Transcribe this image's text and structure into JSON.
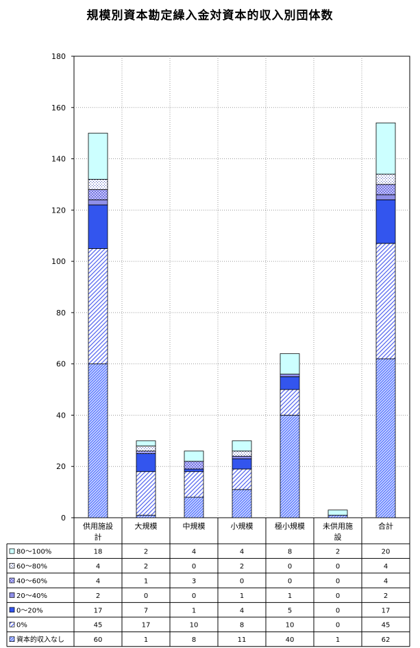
{
  "chart_data": {
    "type": "bar",
    "stacked": true,
    "title": "規模別資本勘定繰入金対資本的収入別団体数",
    "categories": [
      "供用施設計",
      "大規模",
      "中規模",
      "小規模",
      "極小規模",
      "未供用施設",
      "合計"
    ],
    "category_lines": [
      [
        "供用施設",
        "計"
      ],
      [
        "大規模"
      ],
      [
        "中規模"
      ],
      [
        "小規模"
      ],
      [
        "極小規模"
      ],
      [
        "未供用施",
        "設"
      ],
      [
        "合計"
      ]
    ],
    "ylim": [
      0,
      180
    ],
    "yticks": [
      0,
      20,
      40,
      60,
      80,
      100,
      120,
      140,
      160,
      180
    ],
    "grid": true,
    "legend": "table-left",
    "series": [
      {
        "name": "80～100%",
        "values": [
          18,
          2,
          4,
          4,
          8,
          2,
          20
        ],
        "color": "#ccffff",
        "pattern": "solid"
      },
      {
        "name": "60～80%",
        "values": [
          4,
          2,
          0,
          2,
          0,
          0,
          4
        ],
        "color": "#ffffff",
        "pattern": "dots"
      },
      {
        "name": "40～60%",
        "values": [
          4,
          1,
          3,
          0,
          0,
          0,
          4
        ],
        "color": "#c8c8ff",
        "pattern": "checker"
      },
      {
        "name": "20～40%",
        "values": [
          2,
          0,
          0,
          1,
          1,
          0,
          2
        ],
        "color": "#8f8fe8",
        "pattern": "solid"
      },
      {
        "name": "0～20%",
        "values": [
          17,
          7,
          1,
          4,
          5,
          0,
          17
        ],
        "color": "#3355ee",
        "pattern": "solid"
      },
      {
        "name": "0%",
        "values": [
          45,
          17,
          10,
          8,
          10,
          0,
          45
        ],
        "color": "#ffffff",
        "pattern": "diag-light"
      },
      {
        "name": "資本的収入なし",
        "values": [
          60,
          1,
          8,
          11,
          40,
          1,
          62
        ],
        "color": "#4466ee",
        "pattern": "diag-dense"
      }
    ]
  }
}
